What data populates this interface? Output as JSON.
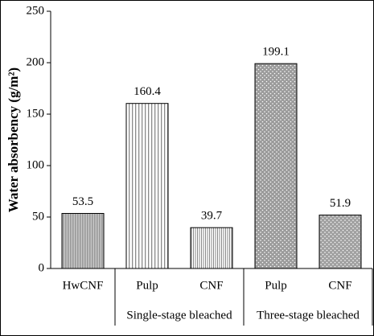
{
  "chart_data": {
    "type": "bar",
    "y_label": "Water absorbency (g/m²)",
    "categories": [
      "HwCNF",
      "Pulp",
      "CNF",
      "Pulp",
      "CNF"
    ],
    "group_labels": [
      null,
      "Single-stage bleached",
      "Single-stage bleached",
      "Three-stage bleached",
      "Three-stage bleached"
    ],
    "values": [
      53.5,
      160.4,
      39.7,
      199.1,
      51.9
    ],
    "patterns": [
      "dense-stripes",
      "stripes",
      "fine-stripes",
      "dots",
      "dots"
    ],
    "colors": [
      "#9a9a9a",
      "#8a8a8a",
      "#8a8a8a",
      "#9a9a9a",
      "#a0a0a0"
    ],
    "ylim": [
      0,
      250
    ],
    "yticks": [
      0,
      50,
      100,
      150,
      200,
      250
    ],
    "grid": false
  }
}
